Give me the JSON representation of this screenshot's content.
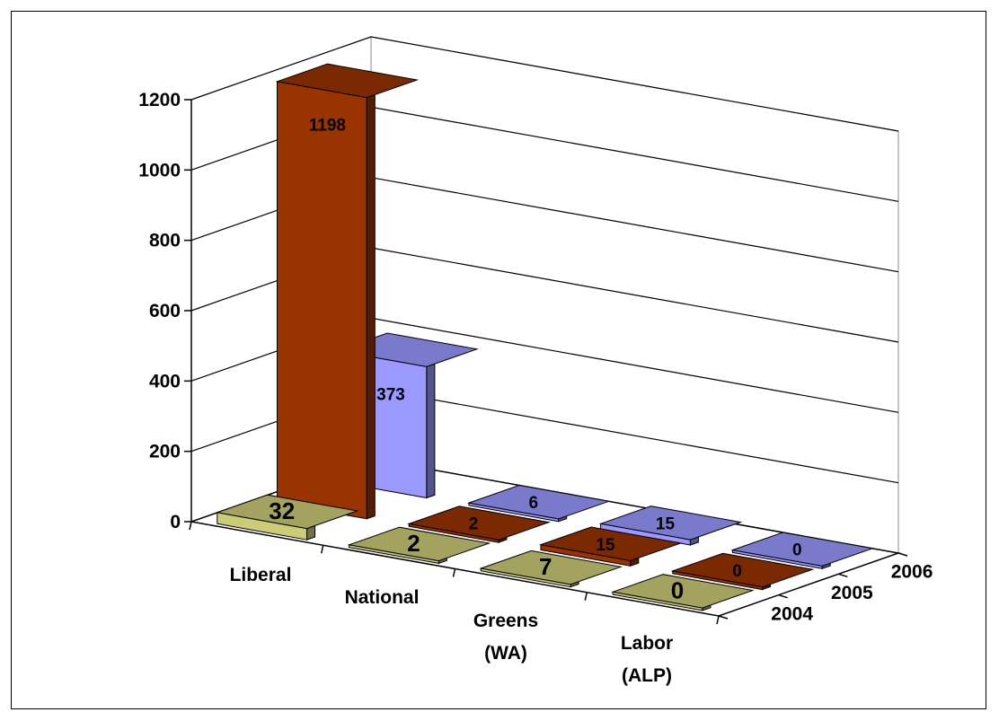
{
  "chart_data": {
    "type": "bar",
    "subtype": "3d-clustered-columns",
    "categories": [
      "Liberal",
      "National",
      "Greens (WA)",
      "Labor (ALP)"
    ],
    "category_lines": [
      [
        "Liberal"
      ],
      [
        "National"
      ],
      [
        "Greens",
        "(WA)"
      ],
      [
        "Labor",
        "(ALP)"
      ]
    ],
    "series": [
      {
        "name": "2004",
        "values": [
          32,
          2,
          7,
          0
        ],
        "color": "#cccc77",
        "label_color": "#000000"
      },
      {
        "name": "2005",
        "values": [
          1198,
          2,
          15,
          0
        ],
        "color": "#993300",
        "label_color": "#ffffff"
      },
      {
        "name": "2006",
        "values": [
          373,
          6,
          15,
          0
        ],
        "color": "#9999ff",
        "label_color": "#ffffff"
      }
    ],
    "yticks": [
      0,
      200,
      400,
      600,
      800,
      1000,
      1200
    ],
    "ylim": [
      0,
      1200
    ],
    "grid": true,
    "legend": "none",
    "title": "",
    "xlabel": "",
    "ylabel": ""
  }
}
